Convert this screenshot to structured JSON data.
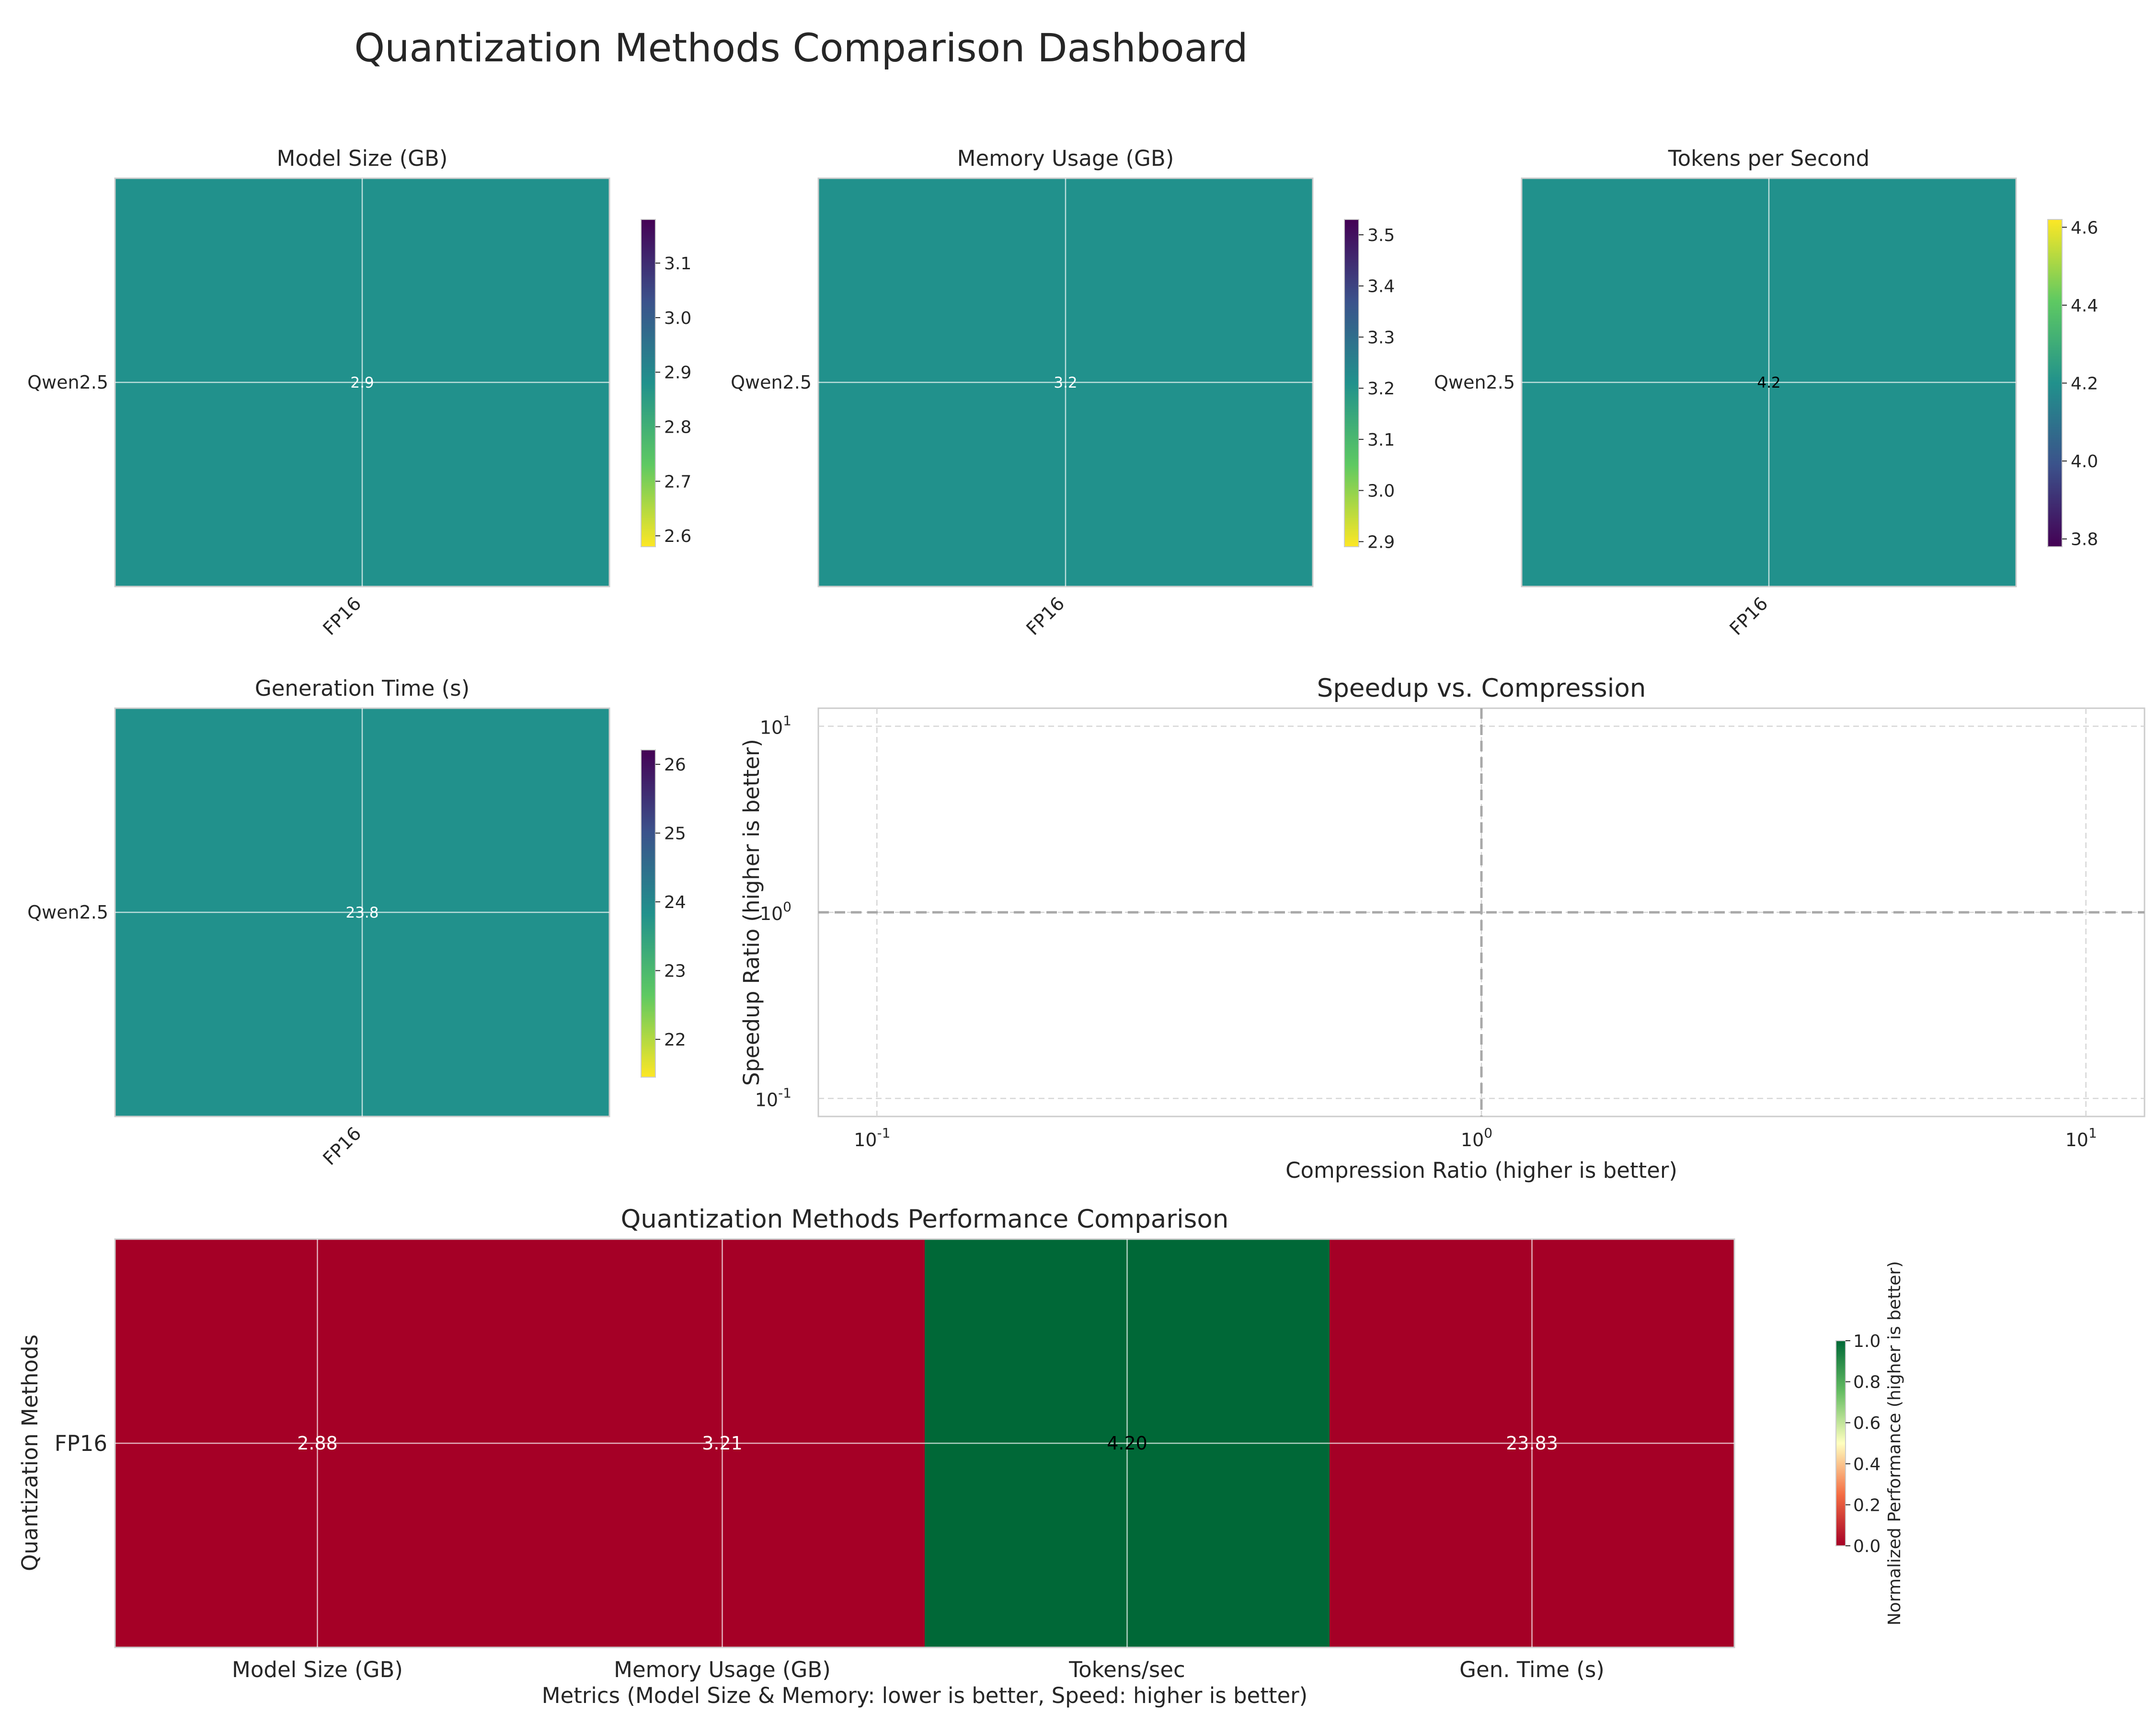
{
  "title": "Quantization Methods Comparison Dashboard",
  "chart_data": [
    {
      "type": "heatmap",
      "title": "Model Size (GB)",
      "rows": [
        "Qwen2.5"
      ],
      "cols": [
        "FP16"
      ],
      "values": [
        [
          2.88
        ]
      ],
      "cell_labels": [
        [
          "2.9"
        ]
      ],
      "colormap": "viridis_r",
      "cell_color": "#21918c",
      "label_color": "#ffffff",
      "colorbar": {
        "range": [
          2.58,
          3.18
        ],
        "ticks": [
          "2.6",
          "2.7",
          "2.8",
          "2.9",
          "3.0",
          "3.1"
        ],
        "reversed": true
      }
    },
    {
      "type": "heatmap",
      "title": "Memory Usage (GB)",
      "rows": [
        "Qwen2.5"
      ],
      "cols": [
        "FP16"
      ],
      "values": [
        [
          3.21
        ]
      ],
      "cell_labels": [
        [
          "3.2"
        ]
      ],
      "colormap": "viridis_r",
      "cell_color": "#21918c",
      "label_color": "#ffffff",
      "colorbar": {
        "range": [
          2.89,
          3.53
        ],
        "ticks": [
          "2.9",
          "3.0",
          "3.1",
          "3.2",
          "3.3",
          "3.4",
          "3.5"
        ],
        "reversed": true
      }
    },
    {
      "type": "heatmap",
      "title": "Tokens per Second",
      "rows": [
        "Qwen2.5"
      ],
      "cols": [
        "FP16"
      ],
      "values": [
        [
          4.2
        ]
      ],
      "cell_labels": [
        [
          "4.2"
        ]
      ],
      "colormap": "viridis",
      "cell_color": "#21918c",
      "label_color": "#000000",
      "colorbar": {
        "range": [
          3.78,
          4.62
        ],
        "ticks": [
          "3.8",
          "4.0",
          "4.2",
          "4.4",
          "4.6"
        ],
        "reversed": false
      }
    },
    {
      "type": "heatmap",
      "title": "Generation Time (s)",
      "rows": [
        "Qwen2.5"
      ],
      "cols": [
        "FP16"
      ],
      "values": [
        [
          23.83
        ]
      ],
      "cell_labels": [
        [
          "23.8"
        ]
      ],
      "colormap": "viridis_r",
      "cell_color": "#21918c",
      "label_color": "#ffffff",
      "colorbar": {
        "range": [
          21.45,
          26.21
        ],
        "ticks": [
          "22",
          "23",
          "24",
          "25",
          "26"
        ],
        "reversed": true
      }
    },
    {
      "type": "scatter",
      "title": "Speedup vs. Compression",
      "xlabel": "Compression Ratio (higher is better)",
      "ylabel": "Speedup Ratio (higher is better)",
      "xscale": "log",
      "yscale": "log",
      "xlim": [
        0.08,
        12.5
      ],
      "ylim": [
        0.08,
        12.5
      ],
      "xticks": [
        0.1,
        1,
        10
      ],
      "yticks": [
        0.1,
        1,
        10
      ],
      "reference_lines": {
        "x": 1,
        "y": 1
      },
      "points": [],
      "grid": true
    },
    {
      "type": "heatmap",
      "title": "Quantization Methods Performance Comparison",
      "xlabel": "Metrics (Model Size & Memory: lower is better, Speed: higher is better)",
      "ylabel": "Quantization Methods",
      "rows": [
        "FP16"
      ],
      "cols": [
        "Model Size (GB)",
        "Memory Usage (GB)",
        "Tokens/sec",
        "Gen. Time (s)"
      ],
      "values": [
        [
          2.88,
          3.21,
          4.2,
          23.83
        ]
      ],
      "cell_labels": [
        [
          "2.88",
          "3.21",
          "4.20",
          "23.83"
        ]
      ],
      "normalized": [
        [
          0.0,
          0.0,
          1.0,
          0.0
        ]
      ],
      "colormap": "RdYlGn",
      "cell_colors": [
        "#a50026",
        "#a50026",
        "#006837",
        "#a50026"
      ],
      "label_colors": [
        "#ffffff",
        "#ffffff",
        "#000000",
        "#ffffff"
      ],
      "colorbar": {
        "label": "Normalized Performance (higher is better)",
        "range": [
          0,
          1
        ],
        "ticks": [
          "0.0",
          "0.2",
          "0.4",
          "0.6",
          "0.8",
          "1.0"
        ]
      }
    }
  ]
}
